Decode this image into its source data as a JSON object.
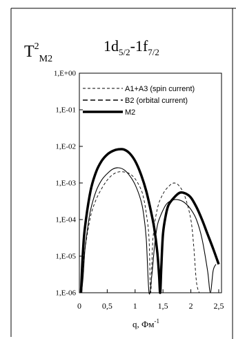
{
  "chart_data": {
    "type": "line",
    "title": {
      "y_symbol": "T",
      "y_sup": "2",
      "y_sub": "M2",
      "transition_a": "1d",
      "transition_a_sub": "5/2",
      "transition_sep": "-1f",
      "transition_b_sub": "7/2"
    },
    "xlabel": "q, Фм",
    "xlabel_sup": "-1",
    "xlim": [
      0,
      2.55
    ],
    "ylim": [
      1e-06,
      1
    ],
    "yscale": "log",
    "x_ticks": [
      0,
      0.5,
      1,
      1.5,
      2,
      2.5
    ],
    "x_tick_labels": [
      "0",
      "0,5",
      "1",
      "1,5",
      "2",
      "2,5"
    ],
    "y_ticks": [
      1e-06,
      1e-05,
      0.0001,
      0.001,
      0.01,
      0.1,
      1
    ],
    "y_tick_labels": [
      "1,E-06",
      "1,E-05",
      "1,E-04",
      "1,E-03",
      "1,E-02",
      "1,E-01",
      "1,E+00"
    ],
    "grid": false,
    "legend_position": "top-right",
    "series": [
      {
        "name": "A1+A3 (spin current)",
        "style": "dashed-thin",
        "x": [
          0.02,
          0.05,
          0.1,
          0.2,
          0.3,
          0.4,
          0.5,
          0.6,
          0.7,
          0.8,
          0.9,
          1.0,
          1.1,
          1.15,
          1.2,
          1.25,
          1.28,
          1.32,
          1.4,
          1.5,
          1.6,
          1.7,
          1.8,
          1.9,
          2.0,
          2.05,
          2.1,
          2.15
        ],
        "y": [
          1e-06,
          3e-06,
          1.5e-05,
          0.00012,
          0.00035,
          0.0007,
          0.0012,
          0.0017,
          0.002,
          0.002,
          0.0018,
          0.0013,
          0.0007,
          0.0004,
          0.00015,
          3e-05,
          1e-06,
          3e-05,
          0.0002,
          0.0005,
          0.0008,
          0.001,
          0.0008,
          0.0004,
          0.0001,
          2e-05,
          2e-06,
          1e-06
        ]
      },
      {
        "name": "B2 (orbital current)",
        "style": "solid-thin",
        "x": [
          0.04,
          0.07,
          0.1,
          0.15,
          0.2,
          0.3,
          0.4,
          0.5,
          0.6,
          0.7,
          0.8,
          0.9,
          1.0,
          1.1,
          1.15,
          1.2,
          1.25,
          1.3,
          1.35,
          1.4,
          1.45,
          1.5,
          1.55,
          1.6,
          1.7,
          1.8,
          1.9,
          2.0,
          2.1,
          2.2,
          2.3,
          2.35,
          2.4,
          2.45
        ],
        "y": [
          1e-06,
          3e-06,
          1.5e-05,
          6e-05,
          0.00018,
          0.0006,
          0.0012,
          0.0018,
          0.0024,
          0.0026,
          0.0023,
          0.0016,
          0.0009,
          0.00035,
          0.00015,
          3e-05,
          1e-06,
          3e-06,
          2e-05,
          7e-05,
          0.00012,
          0.00018,
          0.00025,
          0.0003,
          0.00035,
          0.00034,
          0.00028,
          0.00019,
          0.0001,
          3e-05,
          4e-06,
          1e-06,
          4e-06,
          6e-06
        ]
      },
      {
        "name": "M2",
        "style": "solid-thick",
        "x": [
          0.03,
          0.06,
          0.1,
          0.2,
          0.3,
          0.4,
          0.5,
          0.6,
          0.7,
          0.8,
          0.9,
          1.0,
          1.1,
          1.2,
          1.3,
          1.35,
          1.4,
          1.43,
          1.45,
          1.47,
          1.5,
          1.55,
          1.6,
          1.7,
          1.8,
          1.9,
          2.0,
          2.1,
          2.2,
          2.3,
          2.4,
          2.5
        ],
        "y": [
          1e-06,
          1e-05,
          6e-05,
          0.0006,
          0.002,
          0.004,
          0.006,
          0.0075,
          0.0083,
          0.0082,
          0.0065,
          0.004,
          0.0018,
          0.0006,
          0.00013,
          5e-05,
          1.2e-05,
          3e-06,
          1e-06,
          5e-06,
          4e-05,
          0.00013,
          0.00025,
          0.0004,
          0.00054,
          0.00052,
          0.0004,
          0.00022,
          0.0001,
          4e-05,
          1.6e-05,
          6e-06
        ]
      }
    ]
  }
}
